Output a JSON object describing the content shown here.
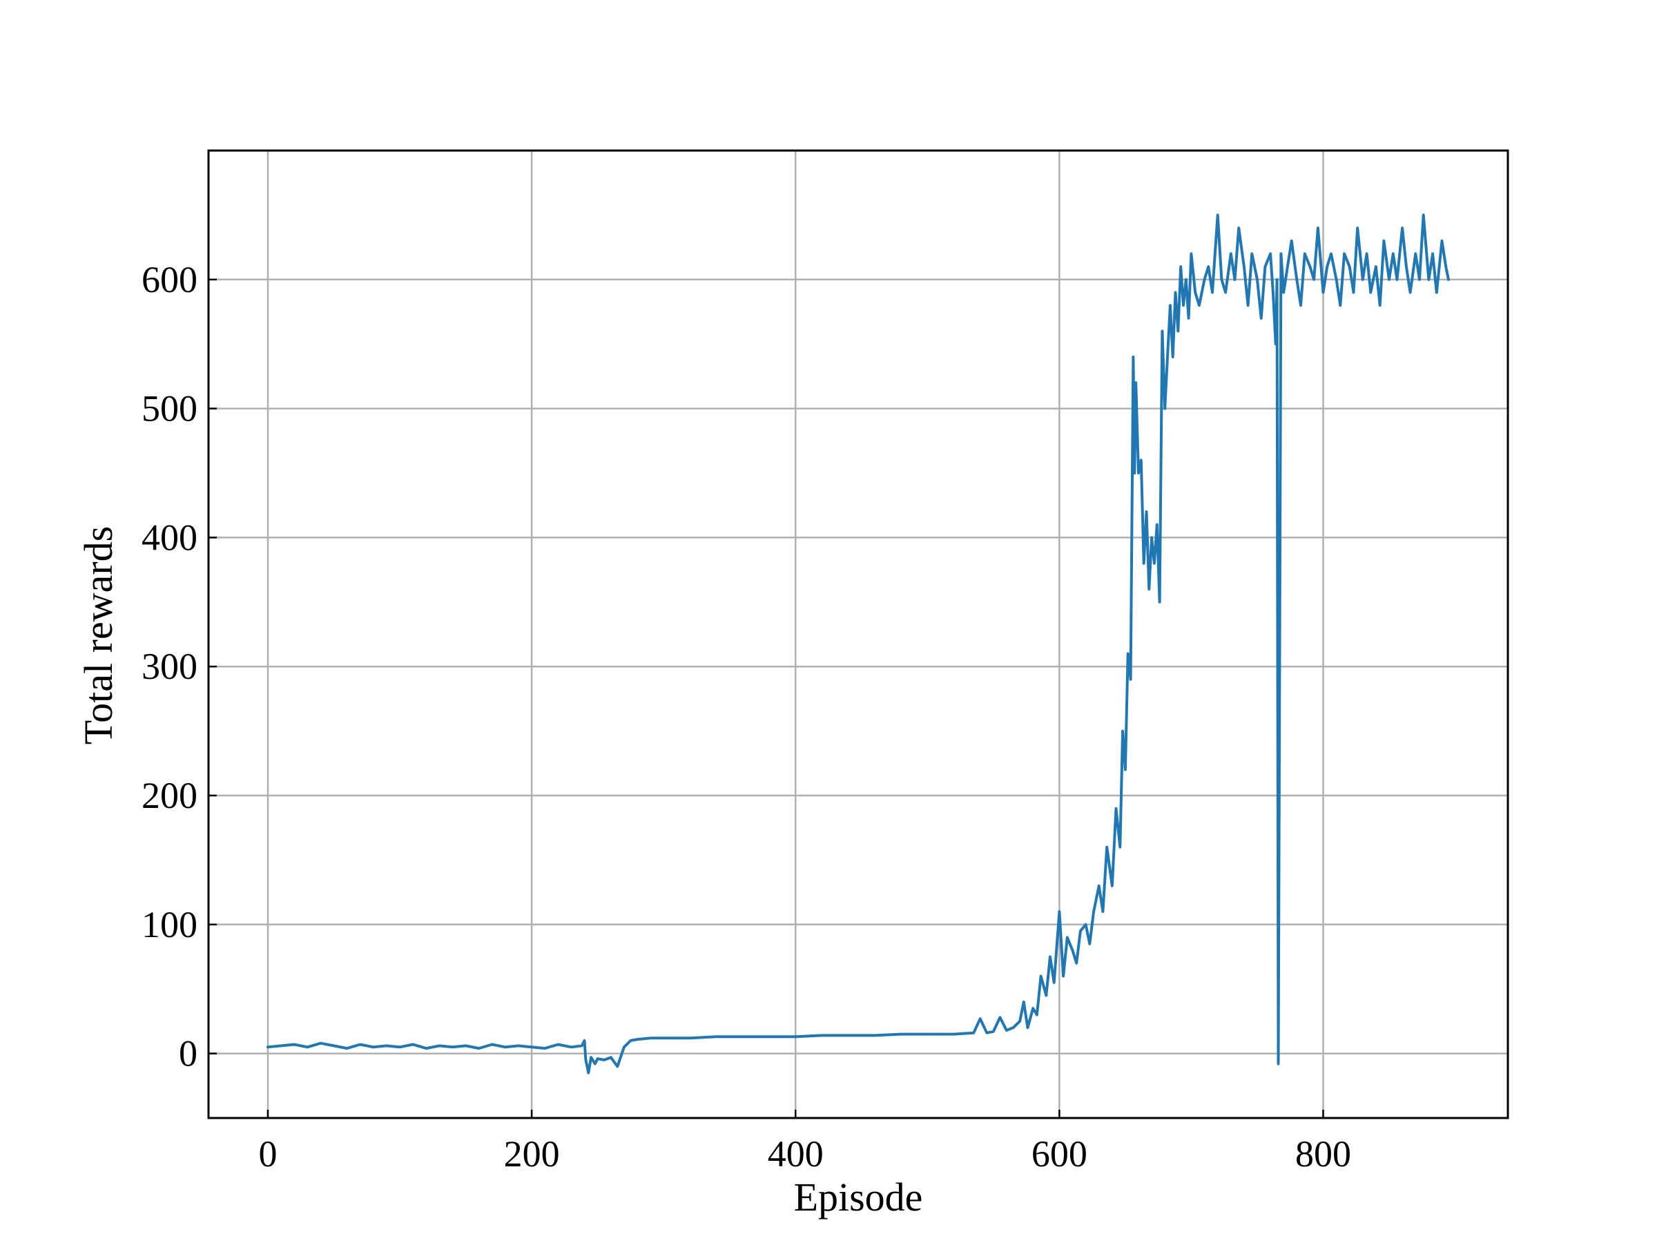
{
  "chart_data": {
    "type": "line",
    "title": "",
    "xlabel": "Episode",
    "ylabel": "Total rewards",
    "xlim": [
      -45,
      940
    ],
    "ylim": [
      -50,
      700
    ],
    "xticks": [
      0,
      200,
      400,
      600,
      800
    ],
    "yticks": [
      0,
      100,
      200,
      300,
      400,
      500,
      600
    ],
    "xtick_labels": [
      "0",
      "200",
      "400",
      "600",
      "800"
    ],
    "ytick_labels": [
      "0",
      "100",
      "200",
      "300",
      "400",
      "500",
      "600"
    ],
    "grid": true,
    "legend": null,
    "series": [
      {
        "name": "Total rewards",
        "color": "#1f77b4",
        "x": [
          0,
          10,
          20,
          30,
          40,
          50,
          60,
          70,
          80,
          90,
          100,
          110,
          120,
          130,
          140,
          150,
          160,
          170,
          180,
          190,
          200,
          210,
          220,
          230,
          238,
          240,
          241,
          243,
          245,
          248,
          250,
          255,
          260,
          265,
          270,
          275,
          280,
          290,
          300,
          320,
          340,
          360,
          380,
          400,
          420,
          440,
          460,
          480,
          500,
          520,
          535,
          540,
          545,
          550,
          555,
          560,
          565,
          570,
          573,
          576,
          580,
          583,
          586,
          590,
          593,
          596,
          600,
          603,
          606,
          610,
          613,
          616,
          620,
          623,
          626,
          630,
          633,
          636,
          640,
          643,
          646,
          648,
          650,
          652,
          654,
          656,
          657,
          658,
          660,
          662,
          664,
          666,
          668,
          670,
          672,
          674,
          676,
          678,
          680,
          682,
          684,
          686,
          688,
          690,
          692,
          694,
          696,
          698,
          700,
          703,
          706,
          710,
          713,
          716,
          720,
          723,
          726,
          730,
          733,
          736,
          740,
          743,
          746,
          750,
          753,
          756,
          760,
          762,
          764,
          765,
          766,
          768,
          770,
          773,
          776,
          780,
          783,
          786,
          790,
          793,
          796,
          800,
          803,
          806,
          810,
          813,
          816,
          820,
          823,
          826,
          830,
          833,
          836,
          840,
          843,
          846,
          850,
          853,
          856,
          860,
          863,
          866,
          870,
          873,
          876,
          880,
          883,
          886,
          890,
          893,
          895
        ],
        "y": [
          5,
          6,
          7,
          5,
          8,
          6,
          4,
          7,
          5,
          6,
          5,
          7,
          4,
          6,
          5,
          6,
          4,
          7,
          5,
          6,
          5,
          4,
          7,
          5,
          6,
          10,
          -5,
          -15,
          -3,
          -8,
          -4,
          -5,
          -3,
          -10,
          5,
          10,
          11,
          12,
          12,
          12,
          13,
          13,
          13,
          13,
          14,
          14,
          14,
          15,
          15,
          15,
          16,
          27,
          16,
          17,
          28,
          18,
          20,
          25,
          40,
          20,
          35,
          30,
          60,
          45,
          75,
          55,
          110,
          60,
          90,
          80,
          70,
          95,
          100,
          85,
          110,
          130,
          110,
          160,
          130,
          190,
          160,
          250,
          220,
          310,
          290,
          540,
          450,
          520,
          450,
          460,
          380,
          420,
          360,
          400,
          380,
          410,
          350,
          560,
          500,
          540,
          580,
          540,
          590,
          560,
          610,
          580,
          600,
          570,
          620,
          590,
          580,
          600,
          610,
          590,
          650,
          600,
          590,
          620,
          600,
          640,
          610,
          580,
          620,
          600,
          570,
          610,
          620,
          590,
          550,
          600,
          -8,
          620,
          590,
          610,
          630,
          600,
          580,
          620,
          610,
          600,
          640,
          590,
          610,
          620,
          600,
          580,
          620,
          610,
          590,
          640,
          600,
          620,
          590,
          610,
          580,
          630,
          600,
          620,
          600,
          640,
          610,
          590,
          620,
          600,
          650,
          600,
          620,
          590,
          630,
          610,
          600
        ]
      }
    ]
  }
}
